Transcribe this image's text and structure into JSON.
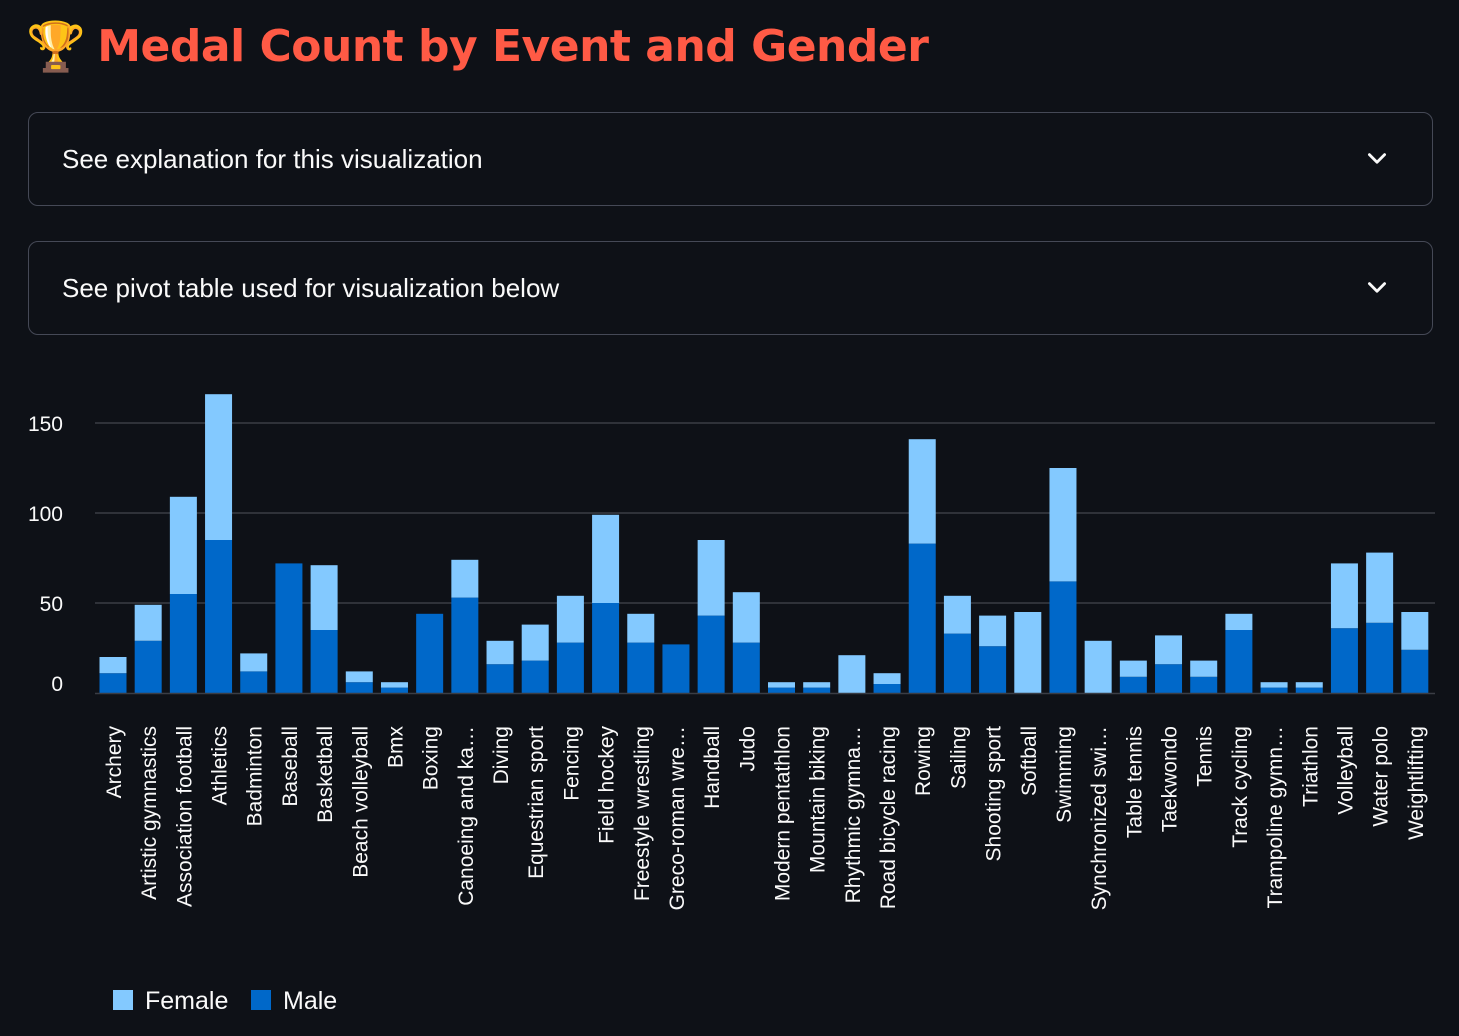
{
  "title": {
    "icon": "trophy-icon",
    "emoji": "🏆",
    "text": "Medal Count by Event and Gender"
  },
  "expanders": [
    {
      "label": "See explanation for this visualization",
      "icon": "chevron-down-icon"
    },
    {
      "label": "See pivot table used for visualization below",
      "icon": "chevron-down-icon"
    }
  ],
  "colors": {
    "title": "#ff5a45",
    "female": "#83c9ff",
    "male": "#0068c9",
    "background": "#0e1117",
    "grid": "#3a3d45"
  },
  "chart_data": {
    "type": "bar",
    "stacked": true,
    "legend_position": "bottom-left",
    "grid": true,
    "ylim": [
      0,
      175
    ],
    "yticks": [
      0,
      50,
      100,
      150
    ],
    "categories": [
      "Archery",
      "Artistic gymnastics",
      "Association football",
      "Athletics",
      "Badminton",
      "Baseball",
      "Basketball",
      "Beach volleyball",
      "Bmx",
      "Boxing",
      "Canoeing and ka…",
      "Diving",
      "Equestrian sport",
      "Fencing",
      "Field hockey",
      "Freestyle wrestling",
      "Greco-roman wre…",
      "Handball",
      "Judo",
      "Modern pentathlon",
      "Mountain biking",
      "Rhythmic gymna…",
      "Road bicycle racing",
      "Rowing",
      "Sailing",
      "Shooting sport",
      "Softball",
      "Swimming",
      "Synchronized swi…",
      "Table tennis",
      "Taekwondo",
      "Tennis",
      "Track cycling",
      "Trampoline gymn…",
      "Triathlon",
      "Volleyball",
      "Water polo",
      "Weightlifting"
    ],
    "series": [
      {
        "name": "Male",
        "color": "#0068c9",
        "values": [
          11,
          29,
          55,
          85,
          12,
          72,
          35,
          6,
          3,
          44,
          53,
          16,
          18,
          28,
          50,
          28,
          27,
          43,
          28,
          3,
          3,
          0,
          5,
          83,
          33,
          26,
          0,
          62,
          0,
          9,
          16,
          9,
          35,
          3,
          3,
          36,
          39,
          24
        ]
      },
      {
        "name": "Female",
        "color": "#83c9ff",
        "values": [
          9,
          20,
          54,
          81,
          10,
          0,
          36,
          6,
          3,
          0,
          21,
          13,
          20,
          26,
          49,
          16,
          0,
          42,
          28,
          3,
          3,
          21,
          6,
          58,
          21,
          17,
          45,
          63,
          29,
          9,
          16,
          9,
          9,
          3,
          3,
          36,
          39,
          21
        ]
      }
    ]
  }
}
